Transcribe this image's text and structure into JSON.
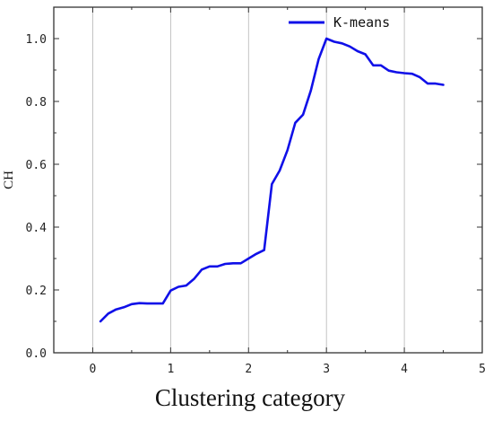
{
  "chart_data": {
    "type": "line",
    "xlabel": "Clustering category",
    "ylabel": "CH",
    "xlim": [
      -0.5,
      5
    ],
    "ylim": [
      0,
      1.1
    ],
    "x_ticks": [
      0,
      1,
      2,
      3,
      4,
      5
    ],
    "x_tick_labels": [
      "0",
      "1",
      "2",
      "3",
      "4",
      "5"
    ],
    "y_ticks": [
      0,
      0.2,
      0.4,
      0.6,
      0.8,
      1.0
    ],
    "y_tick_labels": [
      "0.0",
      "0.2",
      "0.4",
      "0.6",
      "0.8",
      "1.0"
    ],
    "grid": "vertical",
    "legend_position": "top-right",
    "series": [
      {
        "name": "K-means",
        "color": "#1010e8",
        "x": [
          0.1,
          0.2,
          0.3,
          0.4,
          0.5,
          0.6,
          0.7,
          0.8,
          0.9,
          1.0,
          1.1,
          1.2,
          1.3,
          1.4,
          1.5,
          1.6,
          1.7,
          1.8,
          1.9,
          2.0,
          2.1,
          2.2,
          2.3,
          2.4,
          2.5,
          2.6,
          2.7,
          2.8,
          2.9,
          3.0,
          3.1,
          3.2,
          3.3,
          3.4,
          3.5,
          3.6,
          3.7,
          3.8,
          3.9,
          4.0,
          4.1,
          4.2,
          4.3,
          4.4,
          4.5
        ],
        "values": [
          0.1,
          0.125,
          0.138,
          0.145,
          0.155,
          0.158,
          0.157,
          0.157,
          0.157,
          0.198,
          0.21,
          0.214,
          0.235,
          0.265,
          0.275,
          0.275,
          0.283,
          0.285,
          0.285,
          0.3,
          0.315,
          0.327,
          0.537,
          0.58,
          0.645,
          0.732,
          0.758,
          0.835,
          0.935,
          1.0,
          0.99,
          0.985,
          0.975,
          0.96,
          0.95,
          0.915,
          0.915,
          0.898,
          0.893,
          0.89,
          0.888,
          0.877,
          0.857,
          0.857,
          0.853
        ]
      }
    ]
  }
}
